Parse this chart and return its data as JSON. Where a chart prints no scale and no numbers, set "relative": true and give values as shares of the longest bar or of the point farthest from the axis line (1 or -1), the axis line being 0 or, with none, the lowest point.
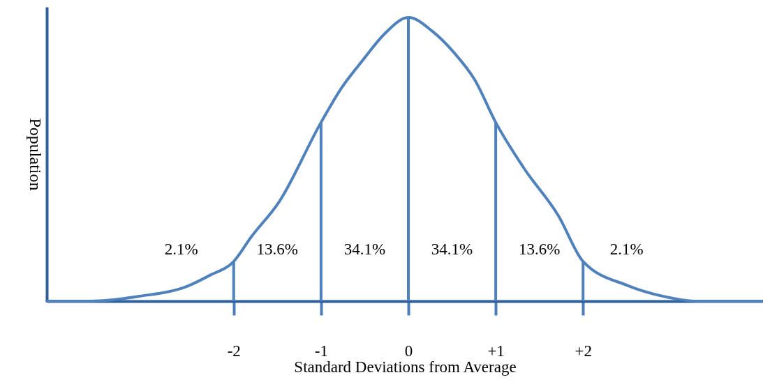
{
  "chart_data": {
    "type": "line",
    "xlabel": "Standard Deviations from Average",
    "ylabel": "Population",
    "relative": true,
    "tick_labels": "x",
    "grid": false,
    "marker": "none",
    "line_style": "solid",
    "x": [
      -4.14,
      -3.64,
      -3.08,
      -2.52,
      -2.28,
      -2,
      -1.8,
      -1.48,
      -1,
      -0.76,
      -0.52,
      -0.28,
      0,
      0.28,
      0.52,
      0.76,
      1,
      1.32,
      1.72,
      2,
      2.52,
      2.92,
      3.32,
      4.06
    ],
    "series": [
      {
        "color": "#4f81bd",
        "values": [
          0,
          0,
          0.017,
          0.054,
          0.09,
          0.14,
          0.226,
          0.35,
          0.63,
          0.754,
          0.85,
          0.94,
          1,
          0.95,
          0.877,
          0.78,
          0.63,
          0.47,
          0.3,
          0.14,
          0.054,
          0.017,
          0,
          0
        ]
      }
    ],
    "xlim": [
      -4.14,
      4.06
    ],
    "xticks": [
      {
        "value": -2,
        "label": "-2"
      },
      {
        "value": -1,
        "label": "-1"
      },
      {
        "value": 0,
        "label": "0"
      },
      {
        "value": 1,
        "label": "+1"
      },
      {
        "value": 2,
        "label": "+2"
      }
    ],
    "ref_lines": [
      {
        "axis": "x",
        "value": -2,
        "color": "#4f81bd"
      },
      {
        "axis": "x",
        "value": -1,
        "color": "#4f81bd"
      },
      {
        "axis": "x",
        "value": 0,
        "color": "#4f81bd"
      },
      {
        "axis": "x",
        "value": 1,
        "color": "#4f81bd"
      },
      {
        "axis": "x",
        "value": 2,
        "color": "#4f81bd"
      }
    ],
    "annotations": [
      "2.1%",
      "13.6%",
      "34.1%",
      "34.1%",
      "13.6%",
      "2.1%"
    ]
  }
}
